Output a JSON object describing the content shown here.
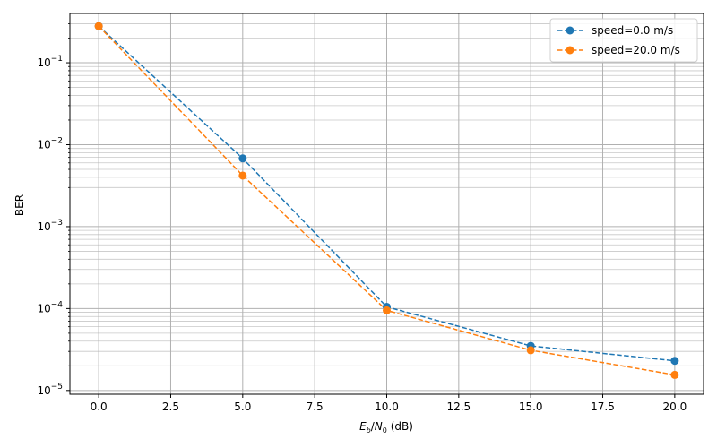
{
  "chart_data": {
    "type": "line",
    "title": "",
    "xlabel": "E_b/N_0 (dB)",
    "xlabel_parts": {
      "E": "E",
      "b": "b",
      "slash": "/",
      "N": "N",
      "zero": "0",
      "unit": " (dB)"
    },
    "ylabel": "BER",
    "yscale": "log",
    "xlim": [
      -1,
      21
    ],
    "ylim": [
      9e-06,
      0.4
    ],
    "grid": true,
    "legend_position": "top-right",
    "x": [
      0,
      5,
      10,
      15,
      20
    ],
    "x_ticks": [
      {
        "value": 0.0,
        "label": "0.0"
      },
      {
        "value": 2.5,
        "label": "2.5"
      },
      {
        "value": 5.0,
        "label": "5.0"
      },
      {
        "value": 7.5,
        "label": "7.5"
      },
      {
        "value": 10.0,
        "label": "10.0"
      },
      {
        "value": 12.5,
        "label": "12.5"
      },
      {
        "value": 15.0,
        "label": "15.0"
      },
      {
        "value": 17.5,
        "label": "17.5"
      },
      {
        "value": 20.0,
        "label": "20.0"
      }
    ],
    "y_ticks": [
      {
        "exp": -5,
        "base": "10",
        "sup": "−5"
      },
      {
        "exp": -4,
        "base": "10",
        "sup": "−4"
      },
      {
        "exp": -3,
        "base": "10",
        "sup": "−3"
      },
      {
        "exp": -2,
        "base": "10",
        "sup": "−2"
      },
      {
        "exp": -1,
        "base": "10",
        "sup": "−1"
      }
    ],
    "series": [
      {
        "name": "speed=0.0 m/s",
        "color": "#1f77b4",
        "values": [
          0.28,
          0.0068,
          0.000105,
          3.5e-05,
          2.3e-05
        ]
      },
      {
        "name": "speed=20.0 m/s",
        "color": "#ff7f0e",
        "values": [
          0.28,
          0.0042,
          9.5e-05,
          3.1e-05,
          1.55e-05
        ]
      }
    ]
  }
}
